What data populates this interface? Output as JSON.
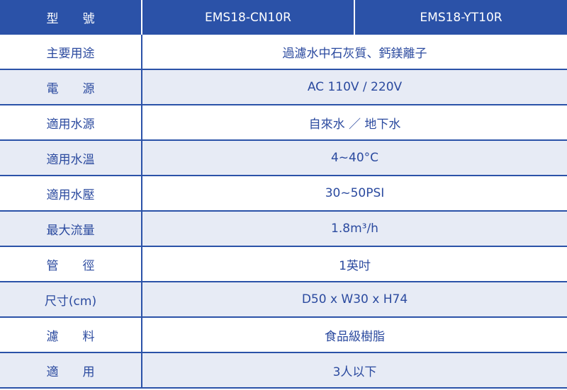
{
  "header": {
    "label": "型　　號",
    "models": [
      "EMS18-CN10R",
      "EMS18-YT10R"
    ]
  },
  "rows": [
    {
      "label": "主要用途",
      "value": "過濾水中石灰質、鈣鎂離子"
    },
    {
      "label": "電　　源",
      "value": "AC 110V / 220V"
    },
    {
      "label": "適用水源",
      "value": "自來水 ／ 地下水"
    },
    {
      "label": "適用水溫",
      "value": "4~40°C"
    },
    {
      "label": "適用水壓",
      "value": "30~50PSI"
    },
    {
      "label": "最大流量",
      "value": "1.8m³/h"
    },
    {
      "label": "管　　徑",
      "value": "1英吋"
    },
    {
      "label": "尺寸(cm)",
      "value": "D50 x W30 x H74"
    },
    {
      "label": "濾　　料",
      "value": "食品級樹脂"
    },
    {
      "label": "適　　用",
      "value": "3人以下"
    }
  ],
  "colors": {
    "header_bg": "#2b52a8",
    "text": "#2b4a9f",
    "alt_row_bg": "#e7ebf5"
  }
}
